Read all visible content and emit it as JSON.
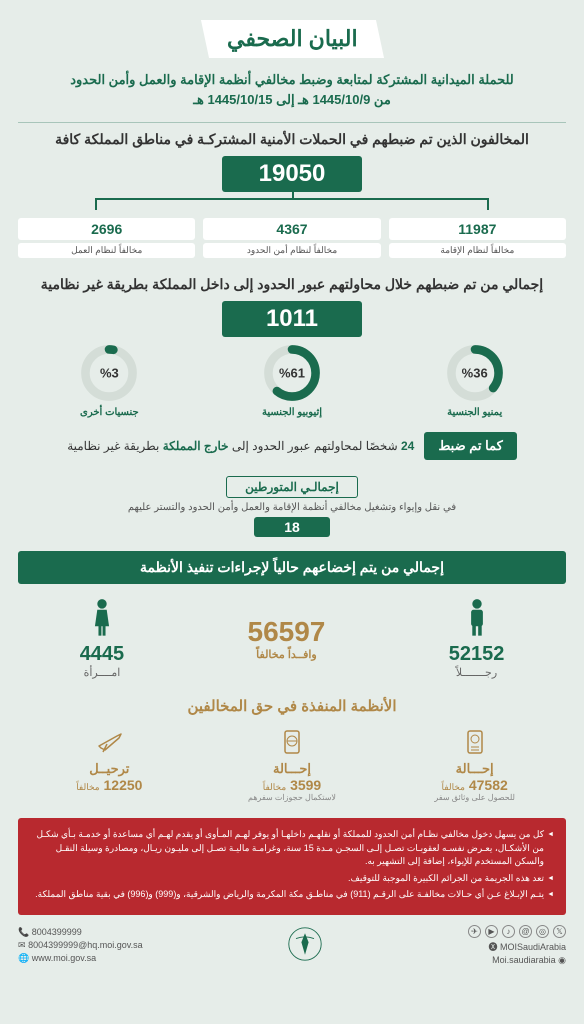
{
  "colors": {
    "primary": "#1a6b4e",
    "gold": "#b08848",
    "red": "#b8292f",
    "bg": "#e6ede9"
  },
  "header": {
    "title": "البيان الصحفي",
    "subtitle": "للحملة الميدانية المشتركة لمتابعة وضبط مخالفي أنظمة الإقامة والعمل وأمن الحدود",
    "date_range": "من 1445/10/9 هـ إلى 1445/10/15 هـ"
  },
  "violators": {
    "title": "المخالفون الذين تم ضبطهم في الحملات الأمنية المشتركـة في مناطق المملكة كافة",
    "total": "19050",
    "breakdown": [
      {
        "value": "11987",
        "label": "مخالفاً لنظام الإقامة"
      },
      {
        "value": "4367",
        "label": "مخالفاً لنظام أمن الحدود"
      },
      {
        "value": "2696",
        "label": "مخالفاً لنظام العمل"
      }
    ]
  },
  "border_in": {
    "title": "إجمالي من تم ضبطهم خلال محاولتهم عبور الحدود إلى داخل المملكة بطريقة غير نظامية",
    "total": "1011",
    "donuts": [
      {
        "pct": 36,
        "pct_label": "%36",
        "label": "يمنيو الجنسية"
      },
      {
        "pct": 61,
        "pct_label": "%61",
        "label": "إثيوبيو الجنسية"
      },
      {
        "pct": 3,
        "pct_label": "%3",
        "label": "جنسيات أخرى"
      }
    ]
  },
  "border_out": {
    "badge": "كما تم ضبط",
    "count": "24",
    "text_before": "شخصًا لمحاولتهم عبور الحدود إلى ",
    "text_bold": "خارج المملكة",
    "text_after": " بطريقة غير نظامية"
  },
  "involved": {
    "title": "إجمالـي المتورطين",
    "desc": "في نقل وإيواء وتشغيل مخالفي أنظمة الإقامة والعمل وأمن الحدود والتستر عليهم",
    "value": "18"
  },
  "enforcement": {
    "bar": "إجمالي من يتم إخضاعهم حالياً لإجراءات تنفيذ الأنظمة",
    "items": [
      {
        "value": "52152",
        "label": "رجـــــــلاً",
        "type": "man"
      },
      {
        "value": "56597",
        "label": "وافــداً مخالفاً",
        "type": "center"
      },
      {
        "value": "4445",
        "label": "امــــرأة",
        "type": "woman"
      }
    ]
  },
  "actions": {
    "title": "الأنظمة المنفذة في حق المخالفين",
    "items": [
      {
        "title": "إحـــالة",
        "value": "47582",
        "unit": "مخالفاً",
        "desc": "للحصول على وثائق سفر",
        "icon": "passport"
      },
      {
        "title": "إحـــالة",
        "value": "3599",
        "unit": "مخالفاً",
        "desc": "لاستكمال حجوزات سفرهم",
        "icon": "ticket"
      },
      {
        "title": "ترحيــل",
        "value": "12250",
        "unit": "مخالفاً",
        "desc": "",
        "icon": "plane"
      }
    ]
  },
  "warnings": [
    "كل من يسهل دخول مخالفي نظـام أمن الحدود للمملكة أو نقلهـم داخلهـا أو يوفر لهـم المـأوى أو يقدم لهـم أي مساعدة أو خدمـة بـأي شكـل من الأشكـال، يعـرض نفسـه لعقوبـات تصـل إلـى السجـن مـدة 15 سنة، وغرامـة ماليـة تصـل إلى مليـون ريـال، ومصادرة وسيلة النقـل والسكن المستخدم للإيواء، إضافة إلى التشهير به.",
    "تعد هذه الجريمة من الجرائم الكبيرة الموجبة للتوقيف.",
    "يتـم الإبـلاغ عـن أي حـالات مخالفـة على الرقـم (911) في مناطـق مكة المكرمة والرياض والشرقية، و(999) و(996) في بقية مناطق المملكة."
  ],
  "footer": {
    "phone": "8004399999",
    "email": "8004399999@hq.moi.gov.sa",
    "web": "www.moi.gov.sa",
    "handle_x": "MOISaudiArabia",
    "handle_other": "Moi.saudiarabia"
  }
}
